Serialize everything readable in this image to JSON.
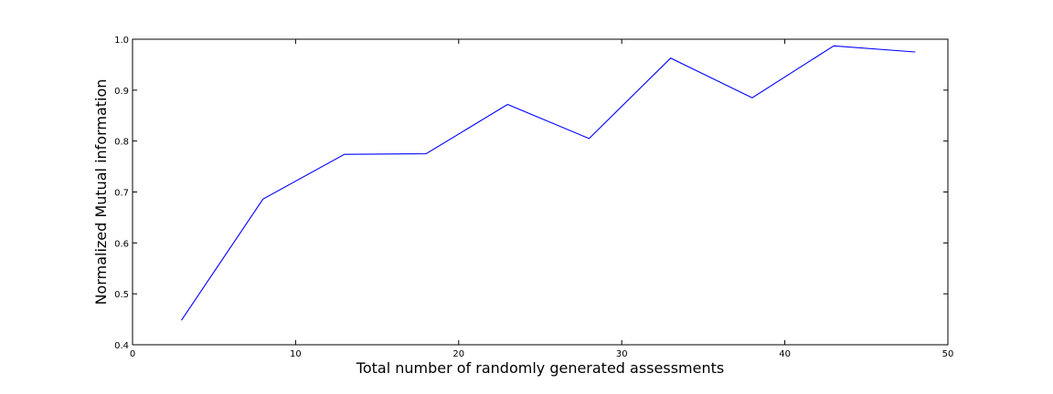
{
  "chart_data": {
    "type": "line",
    "title": "",
    "xlabel": "Total number of randomly generated assessments",
    "ylabel": "Normalized Mutual information",
    "xlim": [
      0,
      50
    ],
    "ylim": [
      0.4,
      1.0
    ],
    "x_ticks": [
      0,
      10,
      20,
      30,
      40,
      50
    ],
    "y_ticks": [
      0.4,
      0.5,
      0.6,
      0.7,
      0.8,
      0.9,
      1.0
    ],
    "x_tick_labels": [
      "0",
      "10",
      "20",
      "30",
      "40",
      "50"
    ],
    "y_tick_labels": [
      "0.4",
      "0.5",
      "0.6",
      "0.7",
      "0.8",
      "0.9",
      "1.0"
    ],
    "grid": false,
    "legend": "none",
    "series": [
      {
        "color": "#0000ff",
        "x": [
          3,
          8,
          13,
          18,
          23,
          28,
          33,
          38,
          43,
          48
        ],
        "y": [
          0.448,
          0.686,
          0.774,
          0.775,
          0.872,
          0.805,
          0.963,
          0.885,
          0.987,
          0.975
        ]
      }
    ]
  }
}
